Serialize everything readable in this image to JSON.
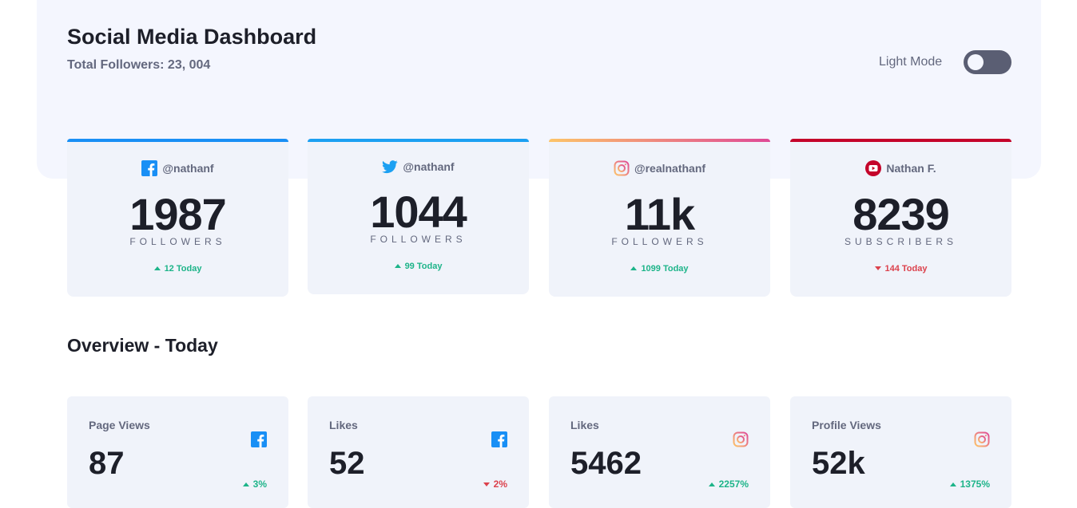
{
  "header": {
    "title": "Social Media Dashboard",
    "subtitle": "Total Followers: 23, 004",
    "mode_label": "Light Mode"
  },
  "colors": {
    "facebook": "#198ff5",
    "twitter": "#1ca0f2",
    "instagram_start": "#fdc468",
    "instagram_end": "#df4996",
    "youtube": "#c4032a",
    "up": "#1db489",
    "down": "#dc414c"
  },
  "cards": [
    {
      "platform_icon": "facebook-icon",
      "handle": "@nathanf",
      "count": "1987",
      "unit": "FOLLOWERS",
      "change": "12 Today",
      "trend": "up"
    },
    {
      "platform_icon": "twitter-icon",
      "handle": "@nathanf",
      "count": "1044",
      "unit": "FOLLOWERS",
      "change": "99 Today",
      "trend": "up"
    },
    {
      "platform_icon": "instagram-icon",
      "handle": "@realnathanf",
      "count": "11k",
      "unit": "FOLLOWERS",
      "change": "1099 Today",
      "trend": "up"
    },
    {
      "platform_icon": "youtube-icon",
      "handle": "Nathan F.",
      "count": "8239",
      "unit": "SUBSCRIBERS",
      "change": "144 Today",
      "trend": "down"
    }
  ],
  "overview": {
    "title": "Overview - Today",
    "items": [
      {
        "label": "Page Views",
        "platform_icon": "facebook-icon",
        "value": "87",
        "change": "3%",
        "trend": "up"
      },
      {
        "label": "Likes",
        "platform_icon": "facebook-icon",
        "value": "52",
        "change": "2%",
        "trend": "down"
      },
      {
        "label": "Likes",
        "platform_icon": "instagram-icon",
        "value": "5462",
        "change": "2257%",
        "trend": "up"
      },
      {
        "label": "Profile Views",
        "platform_icon": "instagram-icon",
        "value": "52k",
        "change": "1375%",
        "trend": "up"
      }
    ]
  }
}
